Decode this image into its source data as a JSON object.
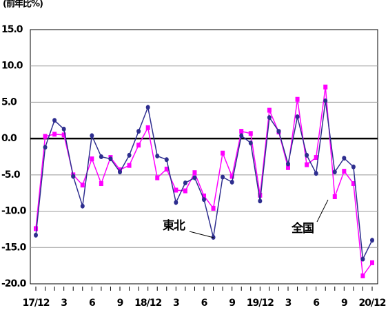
{
  "chart_data": {
    "type": "line",
    "unit_label": "(前年比%)",
    "categories": [
      "17/12",
      null,
      null,
      "3",
      null,
      null,
      "6",
      null,
      null,
      "9",
      null,
      null,
      "18/12",
      null,
      null,
      "3",
      null,
      null,
      "6",
      null,
      null,
      "9",
      null,
      null,
      "19/12",
      null,
      null,
      "3",
      null,
      null,
      "6",
      null,
      null,
      "9",
      null,
      null,
      "20/12"
    ],
    "series": [
      {
        "name": "東北",
        "color": "#2e2e8f",
        "marker": "circle",
        "values": [
          -13.3,
          -1.2,
          2.5,
          1.3,
          -5.2,
          -9.3,
          0.4,
          -2.5,
          -2.8,
          -4.6,
          -2.3,
          1.0,
          4.3,
          -2.4,
          -2.9,
          -8.8,
          -6.1,
          -5.4,
          -8.4,
          -13.6,
          -5.3,
          -6.0,
          0.4,
          -0.6,
          -8.6,
          2.9,
          1.0,
          -3.5,
          3.0,
          -2.3,
          -4.8,
          5.2,
          -4.6,
          -2.7,
          -3.9,
          -16.6,
          -14.0
        ]
      },
      {
        "name": "全国",
        "color": "#ff00ff",
        "marker": "square",
        "values": [
          -12.4,
          0.3,
          0.6,
          0.5,
          -5.0,
          -6.4,
          -2.8,
          -6.2,
          -2.6,
          -4.3,
          -3.7,
          -0.9,
          1.5,
          -5.4,
          -4.2,
          -7.1,
          -7.2,
          -4.7,
          -7.9,
          -9.6,
          -2.0,
          -5.2,
          1.0,
          0.7,
          -7.8,
          3.9,
          0.9,
          -4.0,
          5.4,
          -3.6,
          -2.6,
          7.1,
          -8.0,
          -4.5,
          -6.2,
          -18.9,
          -17.1
        ]
      }
    ],
    "ylim": [
      -20,
      15
    ],
    "yticks": [
      {
        "value": -20,
        "label": "-20.0"
      },
      {
        "value": -15,
        "label": "-15.0"
      },
      {
        "value": -10,
        "label": "-10.0"
      },
      {
        "value": -5,
        "label": "-5.0"
      },
      {
        "value": 0,
        "label": "0.0"
      },
      {
        "value": 5,
        "label": "5.0"
      },
      {
        "value": 10,
        "label": "10.0"
      },
      {
        "value": 15,
        "label": "15.0"
      }
    ],
    "grid": true
  }
}
